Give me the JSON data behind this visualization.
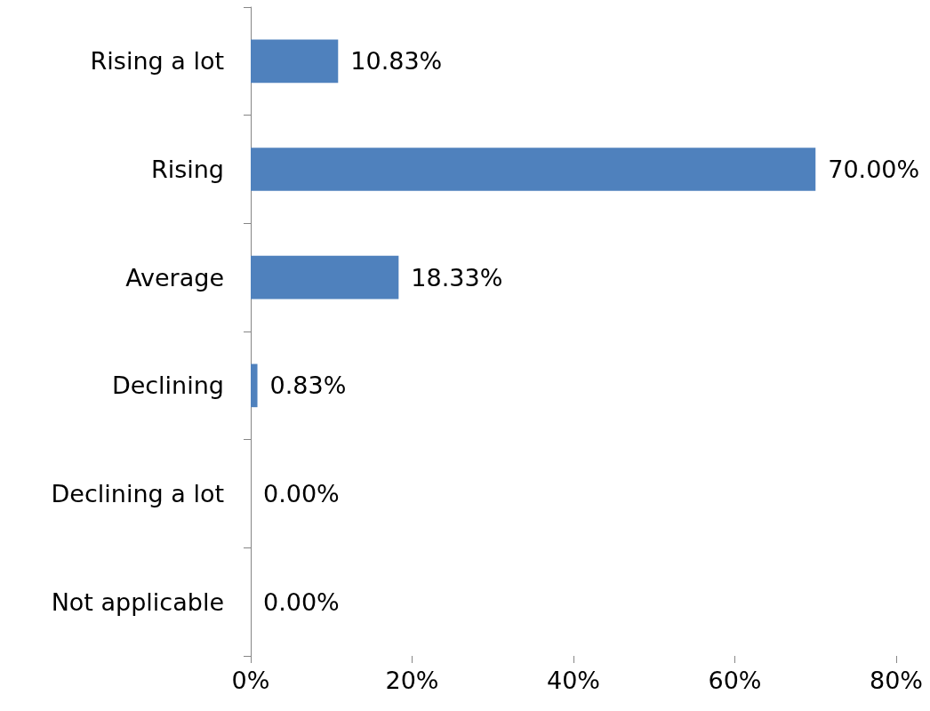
{
  "chart_data": {
    "type": "bar",
    "orientation": "horizontal",
    "categories": [
      "Rising a lot",
      "Rising",
      "Average",
      "Declining",
      "Declining a lot",
      "Not applicable"
    ],
    "values": [
      10.83,
      70.0,
      18.33,
      0.83,
      0.0,
      0.0
    ],
    "value_labels": [
      "10.83%",
      "70.00%",
      "18.33%",
      "0.83%",
      "0.00%",
      "0.00%"
    ],
    "color": "#4f81bd",
    "xlim": [
      0,
      80
    ],
    "xticks": [
      {
        "value": 0,
        "label": "0%"
      },
      {
        "value": 20,
        "label": "20%"
      },
      {
        "value": 40,
        "label": "40%"
      },
      {
        "value": 60,
        "label": "60%"
      },
      {
        "value": 80,
        "label": "80%"
      }
    ],
    "grid": false
  }
}
